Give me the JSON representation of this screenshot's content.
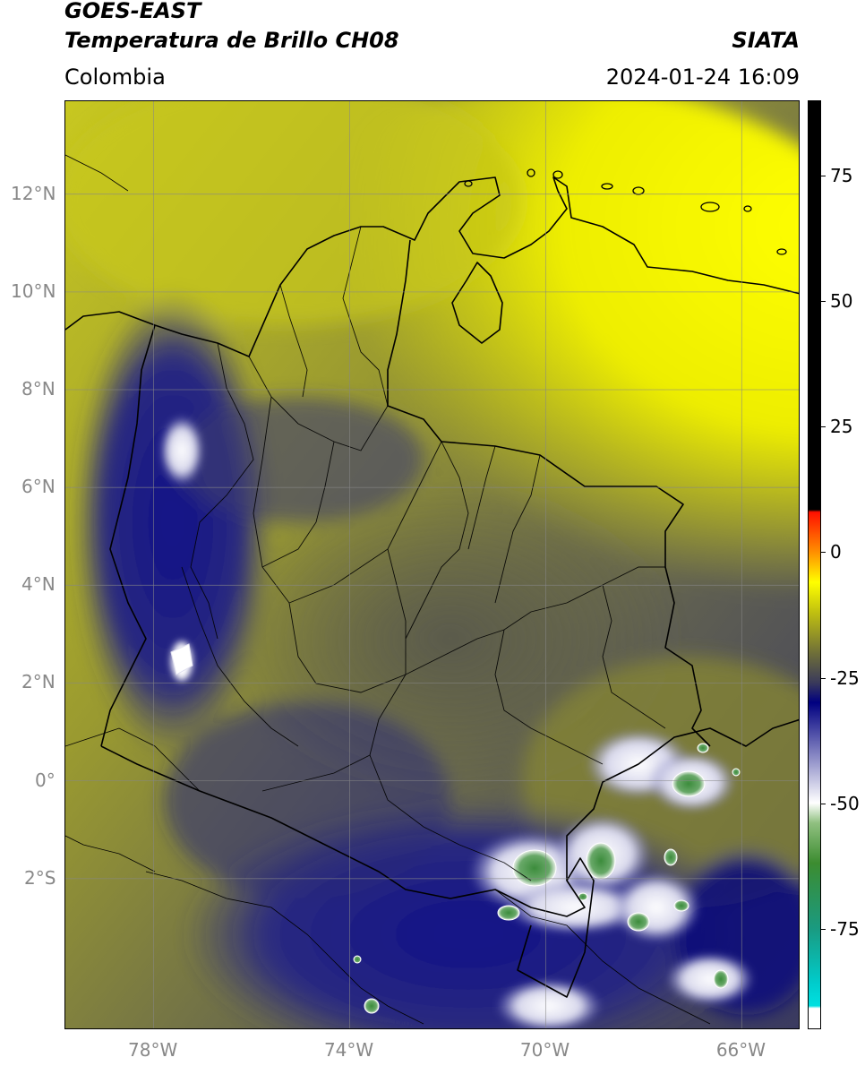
{
  "header": {
    "satellite": "GOES-EAST",
    "product": "Temperatura de Brillo CH08",
    "region": "Colombia",
    "agency": "SIATA",
    "timestamp": "2024-01-24 16:09"
  },
  "map": {
    "lon_range": [
      -79.8,
      -64.8
    ],
    "lat_range": [
      -5.1,
      13.9
    ],
    "lon_ticks": [
      {
        "value": -78,
        "label": "78°W"
      },
      {
        "value": -74,
        "label": "74°W"
      },
      {
        "value": -70,
        "label": "70°W"
      },
      {
        "value": -66,
        "label": "66°W"
      }
    ],
    "lat_ticks": [
      {
        "value": 12,
        "label": "12°N"
      },
      {
        "value": 10,
        "label": "10°N"
      },
      {
        "value": 8,
        "label": "8°N"
      },
      {
        "value": 6,
        "label": "6°N"
      },
      {
        "value": 4,
        "label": "4°N"
      },
      {
        "value": 2,
        "label": "2°N"
      },
      {
        "value": 0,
        "label": "0°"
      },
      {
        "value": -2,
        "label": "2°S"
      }
    ],
    "gridlines": true,
    "colors": {
      "dry_yellow": "#f2f200",
      "olive": "#8c8c28",
      "gray": "#5c5c50",
      "navy": "#1a1a8c",
      "cloud_white": "#f0f0f8",
      "deep_green": "#3c8c3c",
      "border": "#000000",
      "grid": "#888888"
    }
  },
  "colorbar": {
    "range": [
      -95,
      90
    ],
    "ticks": [
      {
        "value": 75,
        "label": "75"
      },
      {
        "value": 50,
        "label": "50"
      },
      {
        "value": 25,
        "label": "25"
      },
      {
        "value": 0,
        "label": "0"
      },
      {
        "value": -25,
        "label": "-25"
      },
      {
        "value": -50,
        "label": "-50"
      },
      {
        "value": -75,
        "label": "-75"
      }
    ],
    "stops": [
      {
        "value": -95,
        "color": "#ffffff"
      },
      {
        "value": -91,
        "color": "#ffffff"
      },
      {
        "value": -90.5,
        "color": "#00e0e0"
      },
      {
        "value": -86,
        "color": "#00cccc"
      },
      {
        "value": -75,
        "color": "#1a9a80"
      },
      {
        "value": -62,
        "color": "#3c8c30"
      },
      {
        "value": -54,
        "color": "#90c080"
      },
      {
        "value": -50,
        "color": "#ffffff"
      },
      {
        "value": -40,
        "color": "#8080c0"
      },
      {
        "value": -30,
        "color": "#000080"
      },
      {
        "value": -26,
        "color": "#3a3a5a"
      },
      {
        "value": -20,
        "color": "#707038"
      },
      {
        "value": -12,
        "color": "#c0c010"
      },
      {
        "value": -6,
        "color": "#ffff00"
      },
      {
        "value": 0,
        "color": "#ff9000"
      },
      {
        "value": 8,
        "color": "#ff1000"
      },
      {
        "value": 8.5,
        "color": "#000000"
      },
      {
        "value": 90,
        "color": "#000000"
      }
    ]
  }
}
